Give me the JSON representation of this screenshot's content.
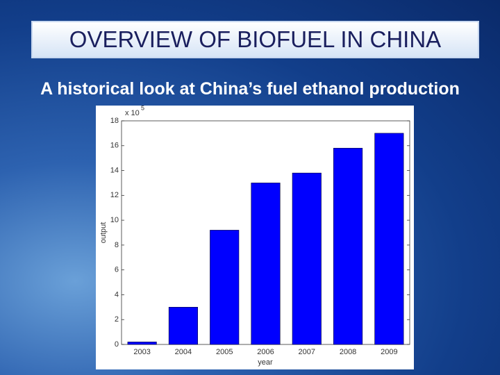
{
  "slide": {
    "title": "OVERVIEW OF BIOFUEL IN CHINA",
    "subtitle": "A historical look at China’s fuel ethanol production"
  },
  "chart_data": {
    "type": "bar",
    "categories": [
      "2003",
      "2004",
      "2005",
      "2006",
      "2007",
      "2008",
      "2009"
    ],
    "values": [
      0.2,
      3.0,
      9.2,
      13.0,
      13.8,
      15.8,
      17.0
    ],
    "color": "#0000ff",
    "xlabel": "year",
    "ylabel": "output",
    "scale_label": "x 10",
    "scale_exponent": "5",
    "ylim": [
      0,
      18
    ],
    "yticks": [
      0,
      2,
      4,
      6,
      8,
      10,
      12,
      14,
      16,
      18
    ]
  }
}
